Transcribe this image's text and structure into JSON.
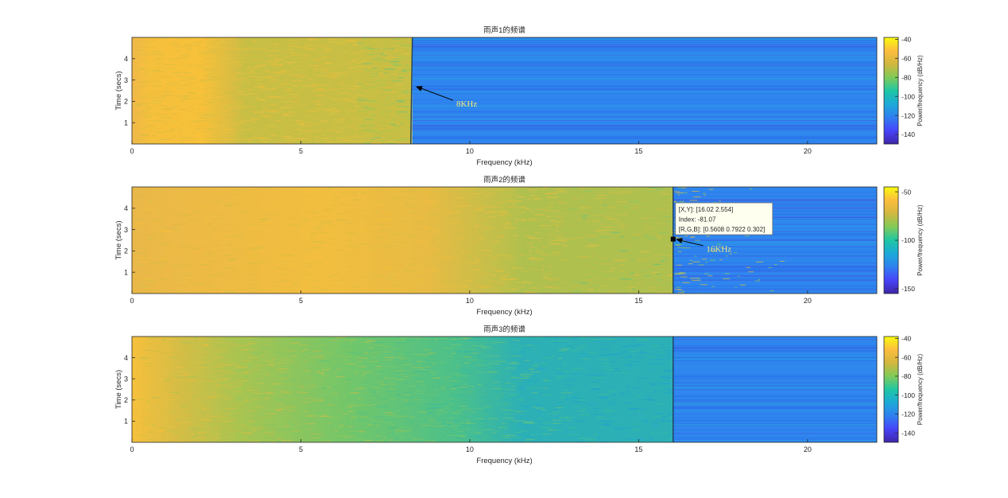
{
  "figure": {
    "colormap": [
      "#3e26a8",
      "#4743f8",
      "#2f80f0",
      "#1ca9d8",
      "#1fc6a4",
      "#80cb58",
      "#d1b73f",
      "#fcbd3d",
      "#f9fb0e"
    ]
  },
  "chart_data": [
    {
      "type": "heatmap",
      "title": "雨声1的频谱",
      "xlabel": "Frequency (kHz)",
      "ylabel": "Time (secs)",
      "xlim": [
        0,
        22.05
      ],
      "ylim": [
        0,
        5
      ],
      "xticks": [
        0,
        5,
        10,
        15,
        20
      ],
      "yticks": [
        1,
        2,
        3,
        4
      ],
      "cutoff_khz": 8.3,
      "colorbar": {
        "label": "Power/frequency (dB/Hz)",
        "ticks": [
          -40,
          -60,
          -80,
          -100,
          -120,
          -140
        ],
        "range": [
          -150,
          -38
        ]
      },
      "annotation": {
        "text": "8KHz",
        "point": [
          8.4,
          2.7
        ],
        "text_pos": [
          9.6,
          1.9
        ]
      }
    },
    {
      "type": "heatmap",
      "title": "雨声2的频谱",
      "xlabel": "Frequency (kHz)",
      "ylabel": "Time (secs)",
      "xlim": [
        0,
        22.05
      ],
      "ylim": [
        0,
        5
      ],
      "xticks": [
        0,
        5,
        10,
        15,
        20
      ],
      "yticks": [
        1,
        2,
        3,
        4
      ],
      "cutoff_khz": 16.02,
      "colorbar": {
        "label": "Power/frequency (dB/Hz)",
        "ticks": [
          -50,
          -100,
          -150
        ],
        "range": [
          -155,
          -45
        ]
      },
      "annotation": {
        "text": "16KHz",
        "point": [
          16.1,
          2.554
        ],
        "text_pos": [
          17.0,
          2.1
        ]
      },
      "datatip": {
        "point": [
          16.02,
          2.554
        ],
        "lines": [
          "[X,Y]: [16.02 2.554]",
          "Index: -81.07",
          "[R,G,B]: [0.5608 0.7922 0.302]"
        ]
      }
    },
    {
      "type": "heatmap",
      "title": "雨声3的频谱",
      "xlabel": "Frequency (kHz)",
      "ylabel": "Time (secs)",
      "xlim": [
        0,
        22.05
      ],
      "ylim": [
        0,
        5
      ],
      "xticks": [
        0,
        5,
        10,
        15,
        20
      ],
      "yticks": [
        1,
        2,
        3,
        4
      ],
      "cutoff_khz": 16.02,
      "colorbar": {
        "label": "Power/frequency (dB/Hz)",
        "ticks": [
          -40,
          -60,
          -80,
          -100,
          -120,
          -140
        ],
        "range": [
          -150,
          -38
        ]
      }
    }
  ]
}
